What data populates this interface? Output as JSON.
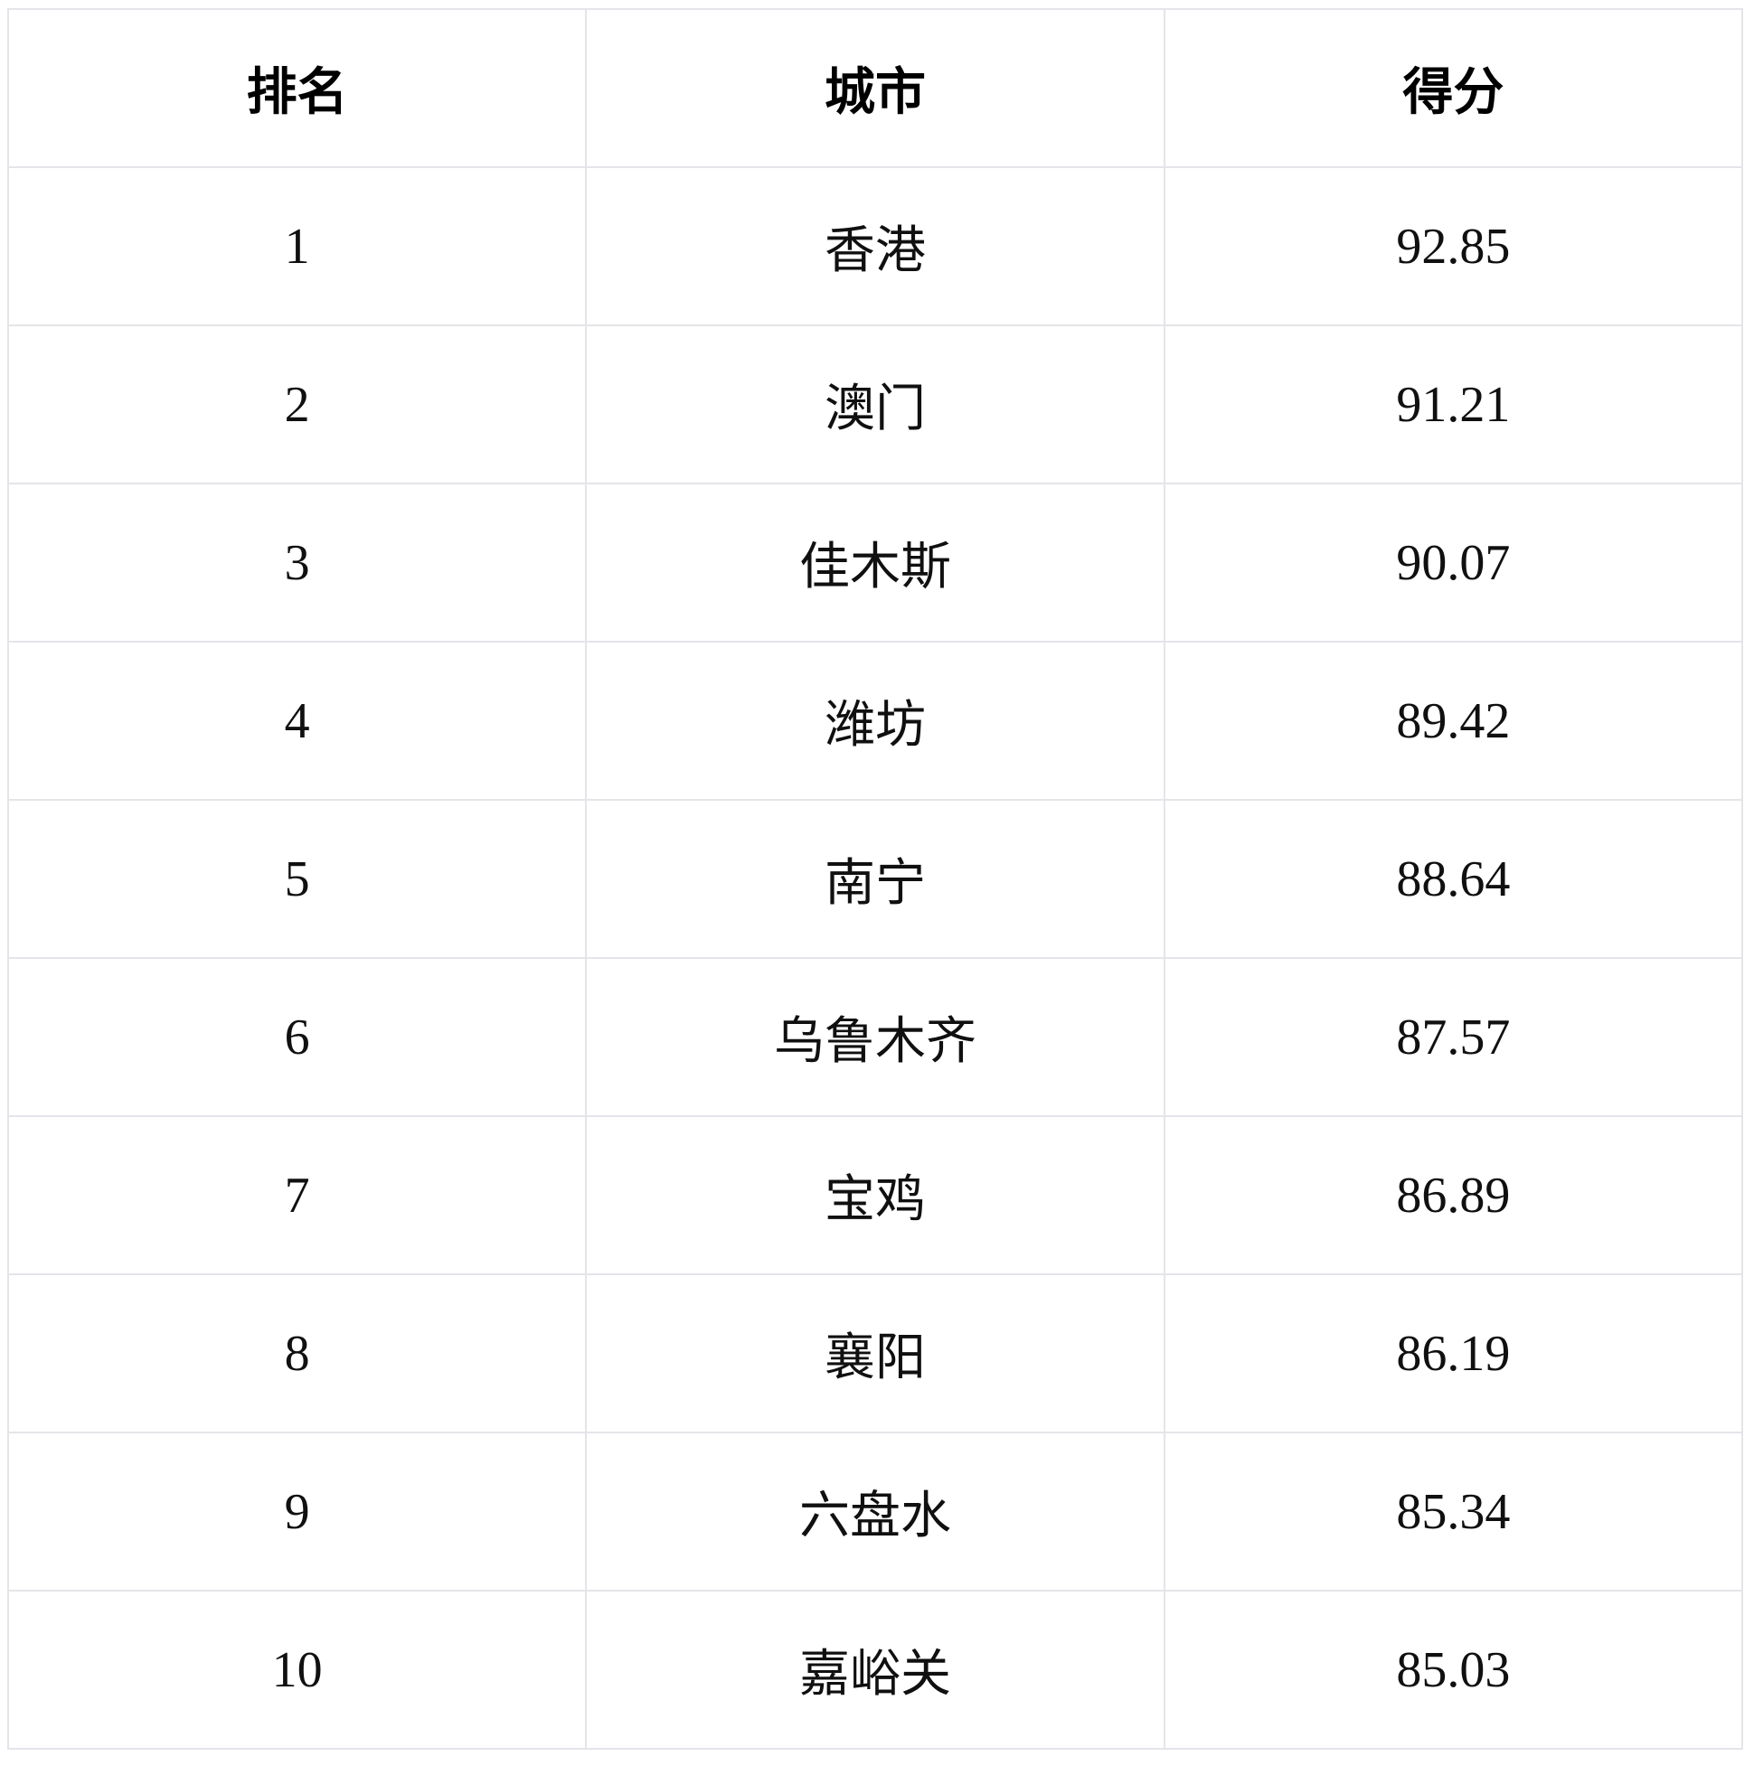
{
  "table": {
    "columns": [
      {
        "key": "rank",
        "label": "排名"
      },
      {
        "key": "city",
        "label": "城市"
      },
      {
        "key": "score",
        "label": "得分"
      }
    ],
    "rows": [
      {
        "rank": "1",
        "city": "香港",
        "score": "92.85"
      },
      {
        "rank": "2",
        "city": "澳门",
        "score": "91.21"
      },
      {
        "rank": "3",
        "city": "佳木斯",
        "score": "90.07"
      },
      {
        "rank": "4",
        "city": "潍坊",
        "score": "89.42"
      },
      {
        "rank": "5",
        "city": "南宁",
        "score": "88.64"
      },
      {
        "rank": "6",
        "city": "乌鲁木齐",
        "score": "87.57"
      },
      {
        "rank": "7",
        "city": "宝鸡",
        "score": "86.89"
      },
      {
        "rank": "8",
        "city": "襄阳",
        "score": "86.19"
      },
      {
        "rank": "9",
        "city": "六盘水",
        "score": "85.34"
      },
      {
        "rank": "10",
        "city": "嘉峪关",
        "score": "85.03"
      }
    ]
  },
  "chart_data": {
    "type": "table",
    "title": "",
    "columns": [
      "排名",
      "城市",
      "得分"
    ],
    "rows": [
      [
        1,
        "香港",
        92.85
      ],
      [
        2,
        "澳门",
        91.21
      ],
      [
        3,
        "佳木斯",
        90.07
      ],
      [
        4,
        "潍坊",
        89.42
      ],
      [
        5,
        "南宁",
        88.64
      ],
      [
        6,
        "乌鲁木齐",
        87.57
      ],
      [
        7,
        "宝鸡",
        86.89
      ],
      [
        8,
        "襄阳",
        86.19
      ],
      [
        9,
        "六盘水",
        85.34
      ],
      [
        10,
        "嘉峪关",
        85.03
      ]
    ]
  },
  "colors": {
    "background": "#ffffff",
    "border": "#e4e5e9",
    "header_text": "#000000",
    "cell_text": "#101010"
  }
}
